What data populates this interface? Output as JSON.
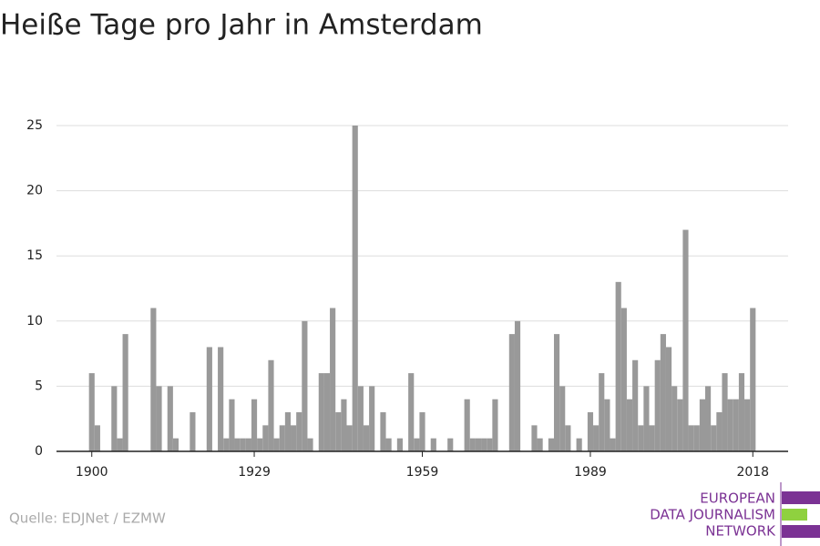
{
  "chart_data": {
    "type": "bar",
    "title": "Heiße Tage pro Jahr in Amsterdam",
    "x": [
      1900,
      1901,
      1902,
      1903,
      1904,
      1905,
      1906,
      1907,
      1908,
      1909,
      1910,
      1911,
      1912,
      1913,
      1914,
      1915,
      1916,
      1917,
      1918,
      1919,
      1920,
      1921,
      1922,
      1923,
      1924,
      1925,
      1926,
      1927,
      1928,
      1929,
      1930,
      1931,
      1932,
      1933,
      1934,
      1935,
      1936,
      1937,
      1938,
      1939,
      1940,
      1941,
      1942,
      1943,
      1944,
      1945,
      1946,
      1947,
      1948,
      1949,
      1950,
      1951,
      1952,
      1953,
      1954,
      1955,
      1956,
      1957,
      1958,
      1959,
      1960,
      1961,
      1962,
      1963,
      1964,
      1965,
      1966,
      1967,
      1968,
      1969,
      1970,
      1971,
      1972,
      1973,
      1974,
      1975,
      1976,
      1977,
      1978,
      1979,
      1980,
      1981,
      1982,
      1983,
      1984,
      1985,
      1986,
      1987,
      1988,
      1989,
      1990,
      1991,
      1992,
      1993,
      1994,
      1995,
      1996,
      1997,
      1998,
      1999,
      2000,
      2001,
      2002,
      2003,
      2004,
      2005,
      2006,
      2007,
      2008,
      2009,
      2010,
      2011,
      2012,
      2013,
      2014,
      2015,
      2016,
      2017,
      2018
    ],
    "values": [
      6,
      2,
      0,
      0,
      5,
      1,
      9,
      0,
      0,
      0,
      0,
      11,
      5,
      0,
      5,
      1,
      0,
      0,
      3,
      0,
      0,
      8,
      0,
      8,
      1,
      4,
      1,
      1,
      1,
      4,
      1,
      2,
      7,
      1,
      2,
      3,
      2,
      3,
      10,
      1,
      0,
      6,
      6,
      11,
      3,
      4,
      2,
      25,
      5,
      2,
      5,
      0,
      3,
      1,
      0,
      1,
      0,
      6,
      1,
      3,
      0,
      1,
      0,
      0,
      1,
      0,
      0,
      4,
      1,
      1,
      1,
      1,
      4,
      0,
      0,
      9,
      10,
      0,
      0,
      2,
      1,
      0,
      1,
      9,
      5,
      2,
      0,
      1,
      0,
      3,
      2,
      6,
      4,
      1,
      13,
      11,
      4,
      7,
      2,
      5,
      2,
      7,
      9,
      8,
      5,
      4,
      17,
      2,
      2,
      4,
      5,
      2,
      3,
      6,
      4,
      4,
      6,
      4,
      11
    ],
    "color": "#999999",
    "xlim": [
      1893.7,
      2024.3
    ],
    "xticks": [
      1900,
      1929,
      1959,
      1989,
      2018
    ],
    "ylim": [
      0,
      25
    ],
    "yticks": [
      0,
      5,
      10,
      15,
      20,
      25
    ],
    "grid": true,
    "source": "Quelle: EDJNet / EZMW",
    "logo": [
      "EUROPEAN",
      "DATA JOURNALISM",
      "NETWORK"
    ]
  }
}
